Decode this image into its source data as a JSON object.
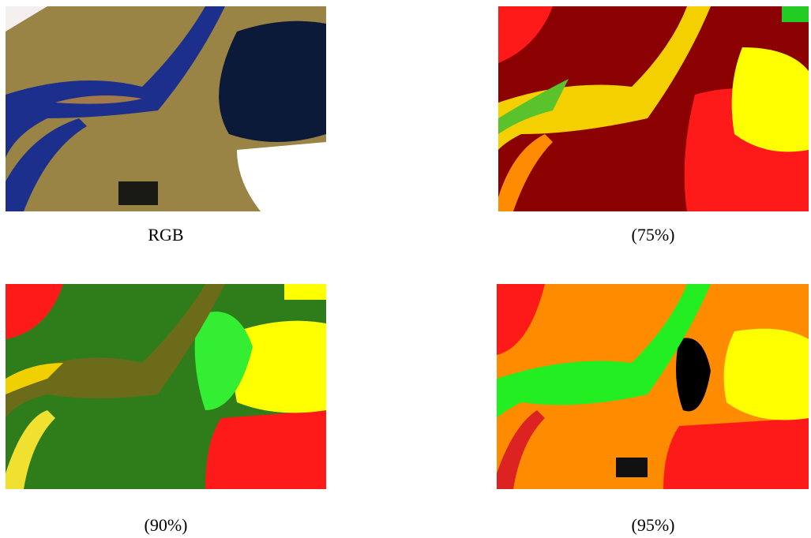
{
  "panels": [
    {
      "caption": "RGB"
    },
    {
      "caption": "(75%)"
    },
    {
      "caption": "(90%)"
    },
    {
      "caption": "(95%)"
    }
  ]
}
